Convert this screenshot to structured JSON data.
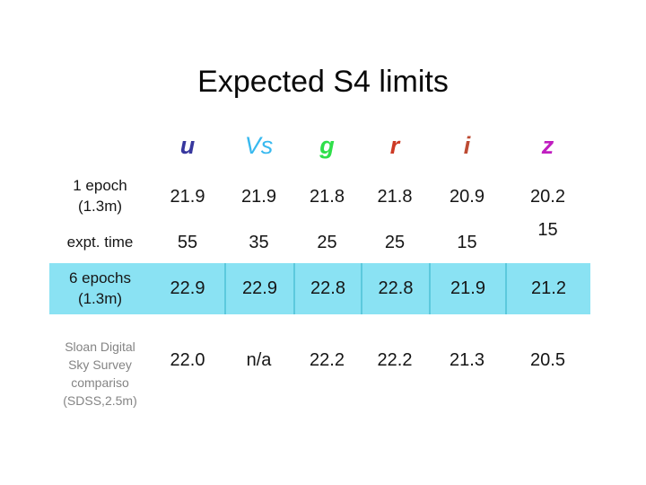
{
  "slide": {
    "title": "Expected S4 limits"
  },
  "colors": {
    "band": "#8ae2f3",
    "band_border": "#5cc9dd",
    "title_text": "#0a0a0a",
    "sloan_label_gray": "#848484"
  },
  "table": {
    "columns": [
      {
        "label": "u",
        "color": "#37379e"
      },
      {
        "label": "Vs",
        "color": "#38b9ef"
      },
      {
        "label": "g",
        "color": "#2fdf4a"
      },
      {
        "label": "r",
        "color": "#cd3a25"
      },
      {
        "label": "i",
        "color": "#bd4b33"
      },
      {
        "label": "z",
        "color": "#c01ec0"
      }
    ],
    "rows": [
      {
        "label_lines": [
          "1 epoch",
          "(1.3m)"
        ],
        "values": [
          "21.9",
          "21.9",
          "21.8",
          "21.8",
          "20.9",
          "20.2"
        ]
      },
      {
        "label_lines": [
          "expt. time"
        ],
        "values": [
          "55",
          "35",
          "25",
          "25",
          "15",
          "15"
        ]
      },
      {
        "label_lines": [
          "6 epochs",
          "(1.3m)"
        ],
        "values": [
          "22.9",
          "22.9",
          "22.8",
          "22.8",
          "21.9",
          "21.2"
        ]
      },
      {
        "label_lines": [
          "Sloan Digital",
          "Sky Survey",
          "compariso",
          "(SDSS,2.5m)"
        ],
        "values": [
          "22.0",
          "n/a",
          "22.2",
          "22.2",
          "21.3",
          "20.5"
        ]
      }
    ]
  }
}
